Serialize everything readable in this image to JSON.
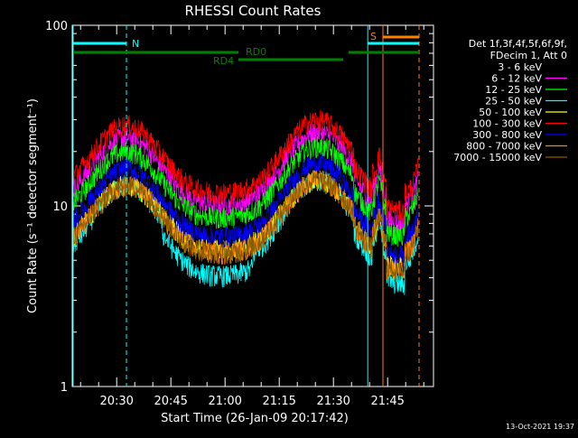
{
  "chart_data": {
    "type": "line",
    "title": "RHESSI Count Rates",
    "xlabel": "Start Time (26-Jan-09 20:17:42)",
    "ylabel": "Count Rate (s⁻¹ detector segment⁻¹)",
    "yscale": "log",
    "ylim": [
      1,
      100
    ],
    "y_ticks": [
      "1",
      "10",
      "100"
    ],
    "x_ticks": [
      "20:30",
      "20:45",
      "21:00",
      "21:15",
      "21:30",
      "21:45"
    ],
    "x_tick_minutes": [
      12.3,
      27.3,
      42.3,
      57.3,
      72.3,
      87.3
    ],
    "x_range_minutes": [
      0,
      100
    ],
    "legend": {
      "header": [
        "Det 1f,3f,4f,5f,6f,9f,",
        "FDecim 1, Att 0"
      ],
      "placement": "right"
    },
    "series": [
      {
        "name": "3 - 6 keV",
        "color": "#000000",
        "base": 14,
        "scale": 1.0
      },
      {
        "name": "6 - 12 keV",
        "color": "#ff00ff",
        "base": 24,
        "scale": 1.0
      },
      {
        "name": "12 - 25 keV",
        "color": "#00ff00",
        "base": 20,
        "scale": 0.98
      },
      {
        "name": "25 - 50 keV",
        "color": "#00ffff",
        "base": 13,
        "scale": 1.15
      },
      {
        "name": "50 - 100 keV",
        "color": "#ffff00",
        "base": 13,
        "scale": 0.95
      },
      {
        "name": "100 - 300 keV",
        "color": "#ff0000",
        "base": 28,
        "scale": 1.0
      },
      {
        "name": "300 - 800 keV",
        "color": "#0000ff",
        "base": 16,
        "scale": 1.0
      },
      {
        "name": "800 - 7000 keV",
        "color": "#ff8000",
        "base": 13,
        "scale": 1.0
      },
      {
        "name": "7000 - 15000 keV",
        "color": "#8b5a00",
        "base": 13,
        "scale": 1.0
      }
    ],
    "annotations": {
      "night_label": "N",
      "saa_label": "S",
      "rd0_label": "RD0",
      "rd4_label": "RD4"
    }
  },
  "footer": {
    "timestamp": "13-Oct-2021 19:37"
  }
}
